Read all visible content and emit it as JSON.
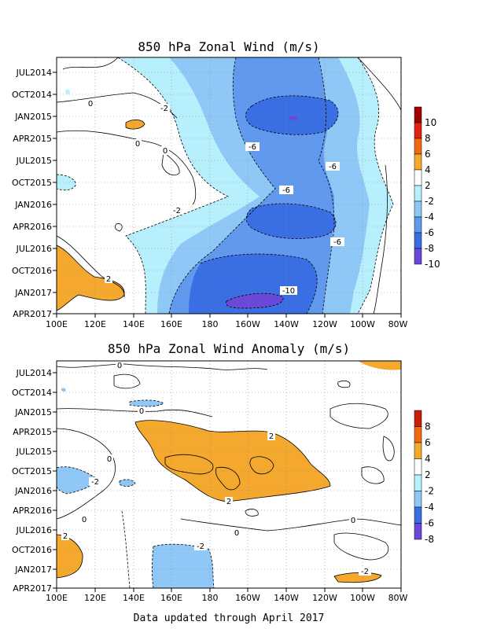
{
  "chart_data": [
    {
      "type": "heatmap",
      "title": "850 hPa Zonal Wind (m/s)",
      "x_ticks": [
        "100E",
        "120E",
        "140E",
        "160E",
        "180",
        "160W",
        "140W",
        "120W",
        "100W",
        "80W"
      ],
      "y_ticks": [
        "JUL2014",
        "OCT2014",
        "JAN2015",
        "APR2015",
        "JUL2015",
        "OCT2015",
        "JAN2016",
        "APR2016",
        "JUL2016",
        "OCT2016",
        "JAN2017",
        "APR2017"
      ],
      "grid": true,
      "colorbar": {
        "labels": [
          "10",
          "8",
          "6",
          "4",
          "2",
          "-2",
          "-4",
          "-6",
          "-8",
          "-10"
        ],
        "colors": [
          "#a00000",
          "#e02010",
          "#f06a10",
          "#f4a82e",
          "#ffffff",
          "#b7effc",
          "#8fc8f6",
          "#6199ef",
          "#3a6fe4",
          "#6a48d8"
        ]
      },
      "contour_labels": [
        "0",
        "-2",
        "0",
        "0",
        "-2",
        "-6",
        "-6",
        "-6",
        "-6",
        "2",
        "-10"
      ]
    },
    {
      "type": "heatmap",
      "title": "850 hPa Zonal Wind Anomaly (m/s)",
      "x_ticks": [
        "100E",
        "120E",
        "140E",
        "160E",
        "180",
        "160W",
        "140W",
        "120W",
        "100W",
        "80W"
      ],
      "y_ticks": [
        "JUL2014",
        "OCT2014",
        "JAN2015",
        "APR2015",
        "JUL2015",
        "OCT2015",
        "JAN2016",
        "APR2016",
        "JUL2016",
        "OCT2016",
        "JAN2017",
        "APR2017"
      ],
      "grid": true,
      "colorbar": {
        "labels": [
          "8",
          "6",
          "4",
          "2",
          "-2",
          "-4",
          "-6",
          "-8"
        ],
        "colors": [
          "#c81e0c",
          "#f06a10",
          "#f4a82e",
          "#ffffff",
          "#b7effc",
          "#8fc8f6",
          "#3a6fe4",
          "#6a48d8"
        ]
      },
      "contour_labels": [
        "0",
        "0",
        "2",
        "2",
        "0",
        "-2",
        "0",
        "-2",
        "0",
        "0",
        "2",
        "-2"
      ]
    }
  ],
  "footer": "Data updated through April 2017",
  "colors": {
    "pos_light": "#f4a82e",
    "neg_light": "#b7effc",
    "neg_mid": "#8fc8f6",
    "neg_mid2": "#6199ef",
    "neg_strong": "#3a6fe4",
    "neg_extreme": "#6a48d8"
  }
}
